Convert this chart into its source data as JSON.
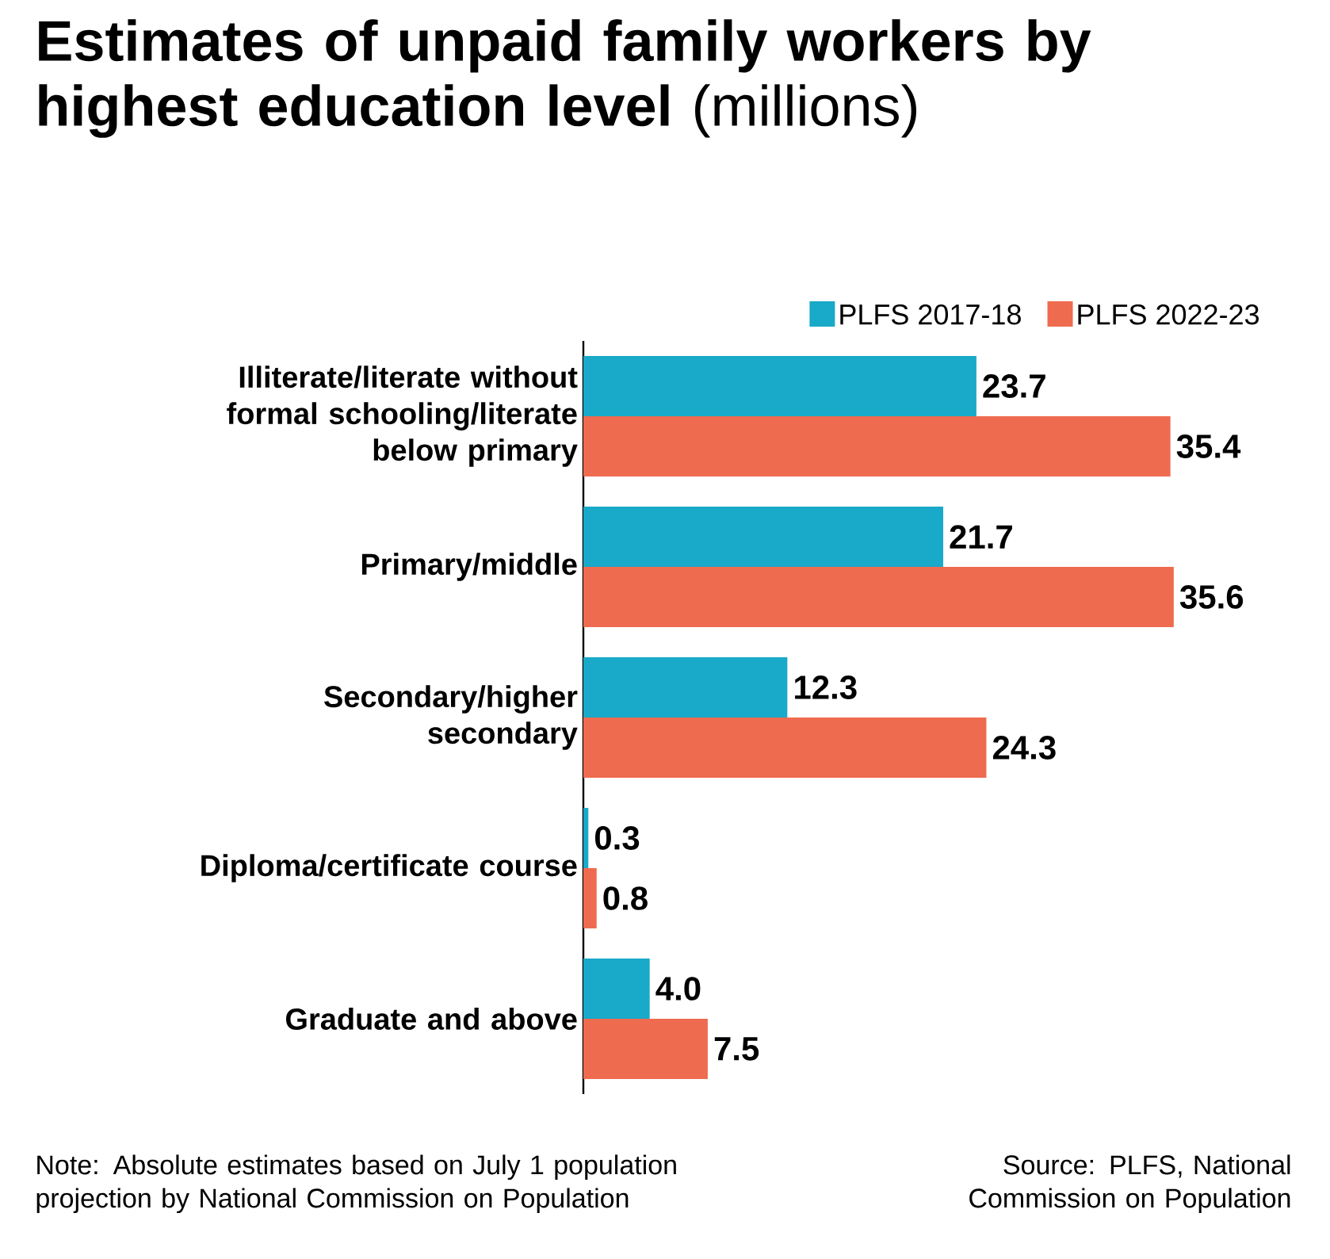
{
  "chart_data": {
    "type": "bar",
    "orientation": "horizontal",
    "title": "**Estimates of unpaid family workers by highest education level** (millions)",
    "categories": [
      "Illiterate/literate without formal schooling/literate below primary",
      "Primary/middle",
      "Secondary/higher secondary",
      "Diploma/certificate course",
      "Graduate and above"
    ],
    "series": [
      {
        "name": "PLFS 2017-18",
        "color": "#19a9c9",
        "values": [
          23.7,
          21.7,
          12.3,
          0.3,
          4.0
        ],
        "value_labels": [
          "23.7",
          "21.7",
          "12.3",
          "0.3",
          "4.0"
        ]
      },
      {
        "name": "PLFS 2022-23",
        "color": "#ef6b4f",
        "values": [
          35.4,
          35.6,
          24.3,
          0.8,
          7.5
        ],
        "value_labels": [
          "35.4",
          "35.6",
          "24.3",
          "0.8",
          "7.5"
        ]
      }
    ],
    "legend": "top right",
    "annotations": [
      "Note: Absolute estimates based on July 1 population projection by National Commission on Population",
      "Source: PLFS, National Commission on Population"
    ]
  }
}
